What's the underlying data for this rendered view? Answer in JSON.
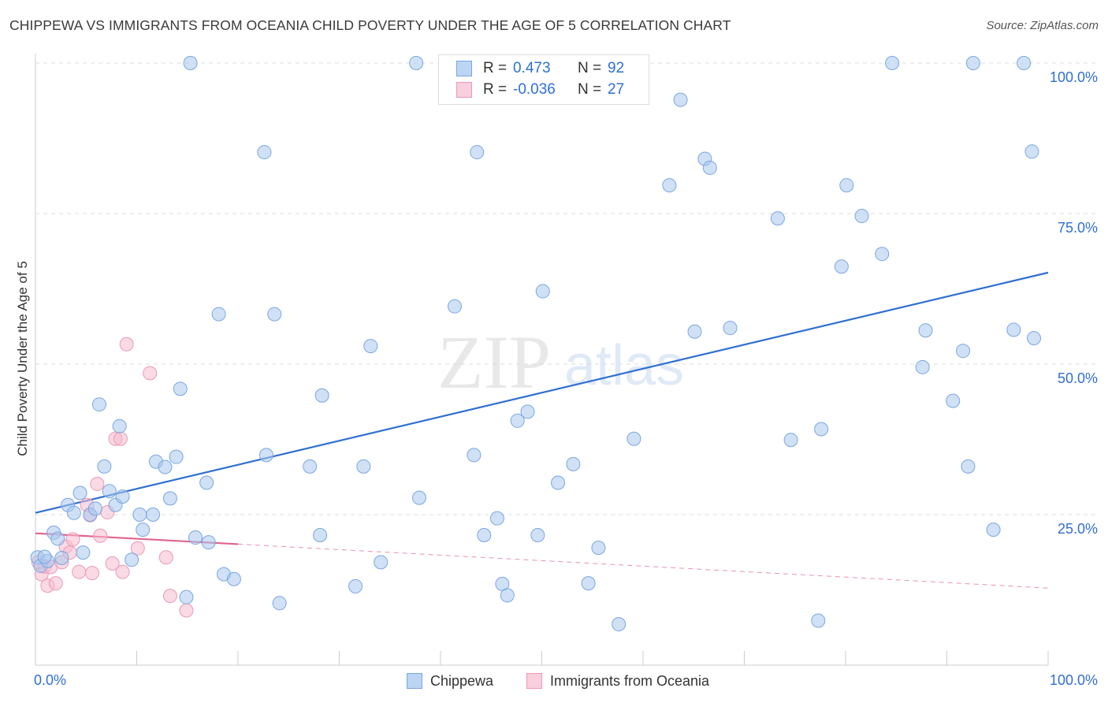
{
  "header": {
    "title": "CHIPPEWA VS IMMIGRANTS FROM OCEANIA CHILD POVERTY UNDER THE AGE OF 5 CORRELATION CHART",
    "source": "Source: ZipAtlas.com"
  },
  "watermark": {
    "part1": "ZIP",
    "part2": "atlas"
  },
  "legend": {
    "rows": [
      {
        "r_label": "R =",
        "r_value": "0.473",
        "n_label": "N =",
        "n_value": "92"
      },
      {
        "r_label": "R =",
        "r_value": "-0.036",
        "n_label": "N =",
        "n_value": "27"
      }
    ]
  },
  "bottom_legend": {
    "series1": "Chippewa",
    "series2": "Immigrants from Oceania"
  },
  "colors": {
    "blue_fill": "#a9c8ef",
    "blue_stroke": "#7aa6e2",
    "blue_line": "#2f6fd1",
    "pink_fill": "#f5bccd",
    "pink_stroke": "#eb9ab4",
    "pink_line": "#e0648e",
    "axis_label": "#2f6fd1",
    "grid": "#dddddd"
  },
  "chart_data": {
    "type": "scatter",
    "title": "CHIPPEWA VS IMMIGRANTS FROM OCEANIA CHILD POVERTY UNDER THE AGE OF 5 CORRELATION CHART",
    "xlabel": "",
    "ylabel": "Child Poverty Under the Age of 5",
    "xlim": [
      0,
      100
    ],
    "ylim": [
      0,
      100
    ],
    "x_tick_labels": [
      "0.0%",
      "100.0%"
    ],
    "y_tick_labels": [
      "25.0%",
      "50.0%",
      "75.0%",
      "100.0%"
    ],
    "y_ticks": [
      25,
      50,
      75,
      100
    ],
    "grid": true,
    "legend_position": "top-center",
    "series": [
      {
        "name": "Chippewa",
        "R": 0.473,
        "N": 92,
        "trend": {
          "x": [
            0,
            100
          ],
          "y": [
            25.3,
            65.2
          ],
          "style": "solid"
        },
        "points": [
          [
            0.2,
            17.9
          ],
          [
            0.5,
            16.5
          ],
          [
            1.2,
            17.3
          ],
          [
            1.8,
            22.0
          ],
          [
            2.2,
            21.0
          ],
          [
            2.6,
            17.8
          ],
          [
            3.2,
            26.6
          ],
          [
            3.8,
            25.3
          ],
          [
            4.4,
            28.6
          ],
          [
            4.7,
            18.7
          ],
          [
            5.4,
            25.0
          ],
          [
            5.9,
            26.0
          ],
          [
            6.3,
            43.3
          ],
          [
            6.8,
            33.0
          ],
          [
            7.3,
            28.9
          ],
          [
            7.9,
            26.6
          ],
          [
            8.3,
            39.7
          ],
          [
            8.6,
            28.0
          ],
          [
            9.5,
            17.5
          ],
          [
            10.3,
            25.0
          ],
          [
            10.6,
            22.5
          ],
          [
            11.6,
            25.0
          ],
          [
            11.9,
            33.8
          ],
          [
            12.8,
            32.9
          ],
          [
            13.3,
            27.7
          ],
          [
            13.9,
            34.6
          ],
          [
            14.3,
            45.9
          ],
          [
            14.9,
            11.3
          ],
          [
            15.3,
            100
          ],
          [
            15.8,
            21.2
          ],
          [
            16.9,
            30.3
          ],
          [
            17.1,
            20.4
          ],
          [
            18.1,
            58.3
          ],
          [
            18.6,
            15.1
          ],
          [
            19.6,
            14.3
          ],
          [
            22.6,
            85.2
          ],
          [
            22.8,
            34.9
          ],
          [
            23.6,
            58.3
          ],
          [
            24.1,
            10.3
          ],
          [
            27.1,
            33.0
          ],
          [
            28.1,
            21.6
          ],
          [
            28.3,
            44.8
          ],
          [
            31.6,
            13.1
          ],
          [
            32.4,
            33.0
          ],
          [
            33.1,
            53.0
          ],
          [
            34.1,
            17.1
          ],
          [
            37.6,
            100
          ],
          [
            37.9,
            27.8
          ],
          [
            41.4,
            59.6
          ],
          [
            43.3,
            34.9
          ],
          [
            43.6,
            85.2
          ],
          [
            44.3,
            21.6
          ],
          [
            45.6,
            24.4
          ],
          [
            46.1,
            13.5
          ],
          [
            46.6,
            11.6
          ],
          [
            47.6,
            40.6
          ],
          [
            48.6,
            42.1
          ],
          [
            49.6,
            21.6
          ],
          [
            50.1,
            62.1
          ],
          [
            51.6,
            30.3
          ],
          [
            53.1,
            33.4
          ],
          [
            54.6,
            13.6
          ],
          [
            55.6,
            19.5
          ],
          [
            57.6,
            6.8
          ],
          [
            59.1,
            37.6
          ],
          [
            62.6,
            79.7
          ],
          [
            63.7,
            93.9
          ],
          [
            65.1,
            55.4
          ],
          [
            66.1,
            84.1
          ],
          [
            66.6,
            82.6
          ],
          [
            68.6,
            56.0
          ],
          [
            73.3,
            74.2
          ],
          [
            74.6,
            37.4
          ],
          [
            77.3,
            7.4
          ],
          [
            77.6,
            39.2
          ],
          [
            79.6,
            66.2
          ],
          [
            80.1,
            79.7
          ],
          [
            81.6,
            74.6
          ],
          [
            83.6,
            68.3
          ],
          [
            84.6,
            100
          ],
          [
            87.6,
            49.5
          ],
          [
            87.9,
            55.6
          ],
          [
            90.6,
            43.9
          ],
          [
            91.6,
            52.2
          ],
          [
            92.1,
            33.0
          ],
          [
            92.6,
            100
          ],
          [
            94.6,
            22.5
          ],
          [
            96.6,
            55.7
          ],
          [
            97.6,
            100
          ],
          [
            98.4,
            85.3
          ],
          [
            98.6,
            54.3
          ],
          [
            0.9,
            18.0
          ]
        ]
      },
      {
        "name": "Immigrants from Oceania",
        "R": -0.036,
        "N": 27,
        "trend": {
          "x": [
            0,
            20
          ],
          "y": [
            21.9,
            20.1
          ],
          "dashed_extension_to": [
            100,
            12.8
          ]
        },
        "points": [
          [
            0.3,
            17.1
          ],
          [
            0.6,
            15.1
          ],
          [
            0.9,
            16.4
          ],
          [
            1.2,
            13.2
          ],
          [
            1.5,
            16.3
          ],
          [
            2.0,
            13.6
          ],
          [
            2.6,
            17.1
          ],
          [
            3.0,
            19.7
          ],
          [
            3.4,
            18.7
          ],
          [
            3.7,
            20.9
          ],
          [
            4.3,
            15.5
          ],
          [
            5.1,
            26.6
          ],
          [
            5.4,
            24.9
          ],
          [
            5.6,
            15.3
          ],
          [
            6.1,
            30.1
          ],
          [
            6.4,
            21.5
          ],
          [
            7.1,
            25.4
          ],
          [
            7.6,
            16.9
          ],
          [
            7.9,
            37.6
          ],
          [
            8.4,
            37.6
          ],
          [
            8.6,
            15.5
          ],
          [
            9.0,
            53.3
          ],
          [
            10.1,
            19.4
          ],
          [
            11.3,
            48.5
          ],
          [
            12.9,
            17.9
          ],
          [
            13.3,
            11.5
          ],
          [
            14.9,
            9.1
          ]
        ]
      }
    ],
    "extra_points_note": ""
  }
}
